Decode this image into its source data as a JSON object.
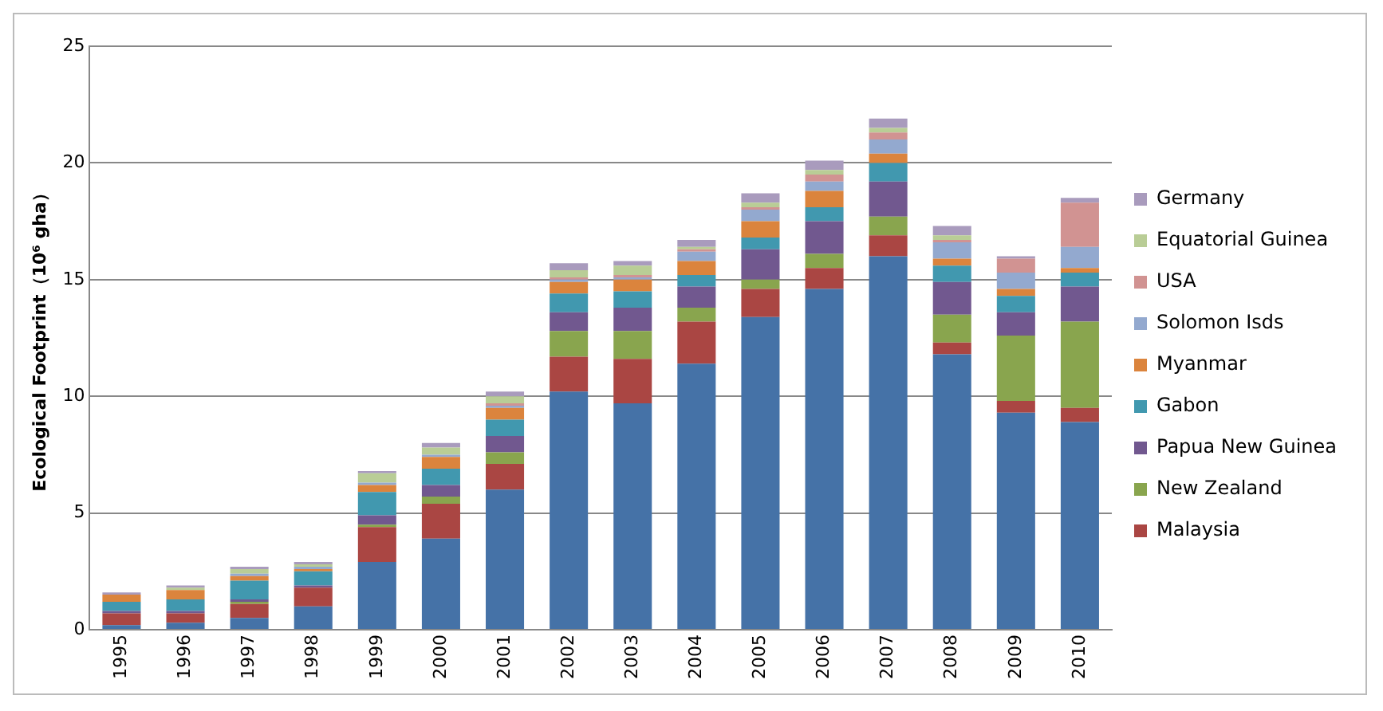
{
  "chart_data": {
    "type": "bar",
    "stacked": true,
    "ylabel": "Ecological Footprint（10⁶ gha）",
    "categories": [
      "1995",
      "1996",
      "1997",
      "1998",
      "1999",
      "2000",
      "2001",
      "2002",
      "2003",
      "2004",
      "2005",
      "2006",
      "2007",
      "2008",
      "2009",
      "2010"
    ],
    "series": [
      {
        "color": "#4572a7",
        "values": [
          0.2,
          0.3,
          0.5,
          1.0,
          2.9,
          3.9,
          6.0,
          10.2,
          9.7,
          11.4,
          13.4,
          14.6,
          16.0,
          11.8,
          9.3,
          8.9
        ]
      },
      {
        "name": "Malaysia",
        "color": "#aa4643",
        "values": [
          0.5,
          0.4,
          0.6,
          0.8,
          1.5,
          1.5,
          1.1,
          1.5,
          1.9,
          1.8,
          1.2,
          0.9,
          0.9,
          0.5,
          0.5,
          0.6
        ]
      },
      {
        "name": "New Zealand",
        "color": "#89a54e",
        "values": [
          0,
          0,
          0.1,
          0,
          0.1,
          0.3,
          0.5,
          1.1,
          1.2,
          0.6,
          0.4,
          0.6,
          0.8,
          1.2,
          2.8,
          3.7
        ]
      },
      {
        "name": "Papua New Guinea",
        "color": "#71588f",
        "values": [
          0.1,
          0.1,
          0.1,
          0.1,
          0.4,
          0.5,
          0.7,
          0.8,
          1.0,
          0.9,
          1.3,
          1.4,
          1.5,
          1.4,
          1.0,
          1.5
        ]
      },
      {
        "name": "Gabon",
        "color": "#4198af",
        "values": [
          0.4,
          0.5,
          0.8,
          0.6,
          1.0,
          0.7,
          0.7,
          0.8,
          0.7,
          0.5,
          0.5,
          0.6,
          0.8,
          0.7,
          0.7,
          0.6
        ]
      },
      {
        "name": "Myanmar",
        "color": "#db843d",
        "values": [
          0.3,
          0.4,
          0.2,
          0.1,
          0.3,
          0.5,
          0.5,
          0.5,
          0.5,
          0.6,
          0.7,
          0.7,
          0.4,
          0.3,
          0.3,
          0.2
        ]
      },
      {
        "name": "Solomon Isds",
        "color": "#93a9cf",
        "values": [
          0,
          0,
          0.1,
          0.1,
          0.1,
          0.1,
          0.1,
          0.1,
          0.1,
          0.4,
          0.5,
          0.4,
          0.6,
          0.7,
          0.7,
          0.9
        ]
      },
      {
        "name": "USA",
        "color": "#d19392",
        "values": [
          0,
          0,
          0,
          0,
          0,
          0,
          0.1,
          0.1,
          0.1,
          0.1,
          0.1,
          0.3,
          0.3,
          0.1,
          0.6,
          1.9
        ]
      },
      {
        "name": "Equatorial Guinea",
        "color": "#b9cd96",
        "values": [
          0,
          0.1,
          0.2,
          0.1,
          0.4,
          0.3,
          0.3,
          0.3,
          0.4,
          0.1,
          0.2,
          0.2,
          0.2,
          0.2,
          0,
          0
        ]
      },
      {
        "name": "Germany",
        "color": "#a99bbd",
        "values": [
          0.1,
          0.1,
          0.1,
          0.1,
          0.1,
          0.2,
          0.2,
          0.3,
          0.2,
          0.3,
          0.4,
          0.4,
          0.4,
          0.4,
          0.1,
          0.2
        ]
      }
    ],
    "ylim": [
      0,
      25
    ],
    "yticks": [
      0,
      5,
      10,
      15,
      20,
      25
    ],
    "grid": "y",
    "legend": "right"
  }
}
